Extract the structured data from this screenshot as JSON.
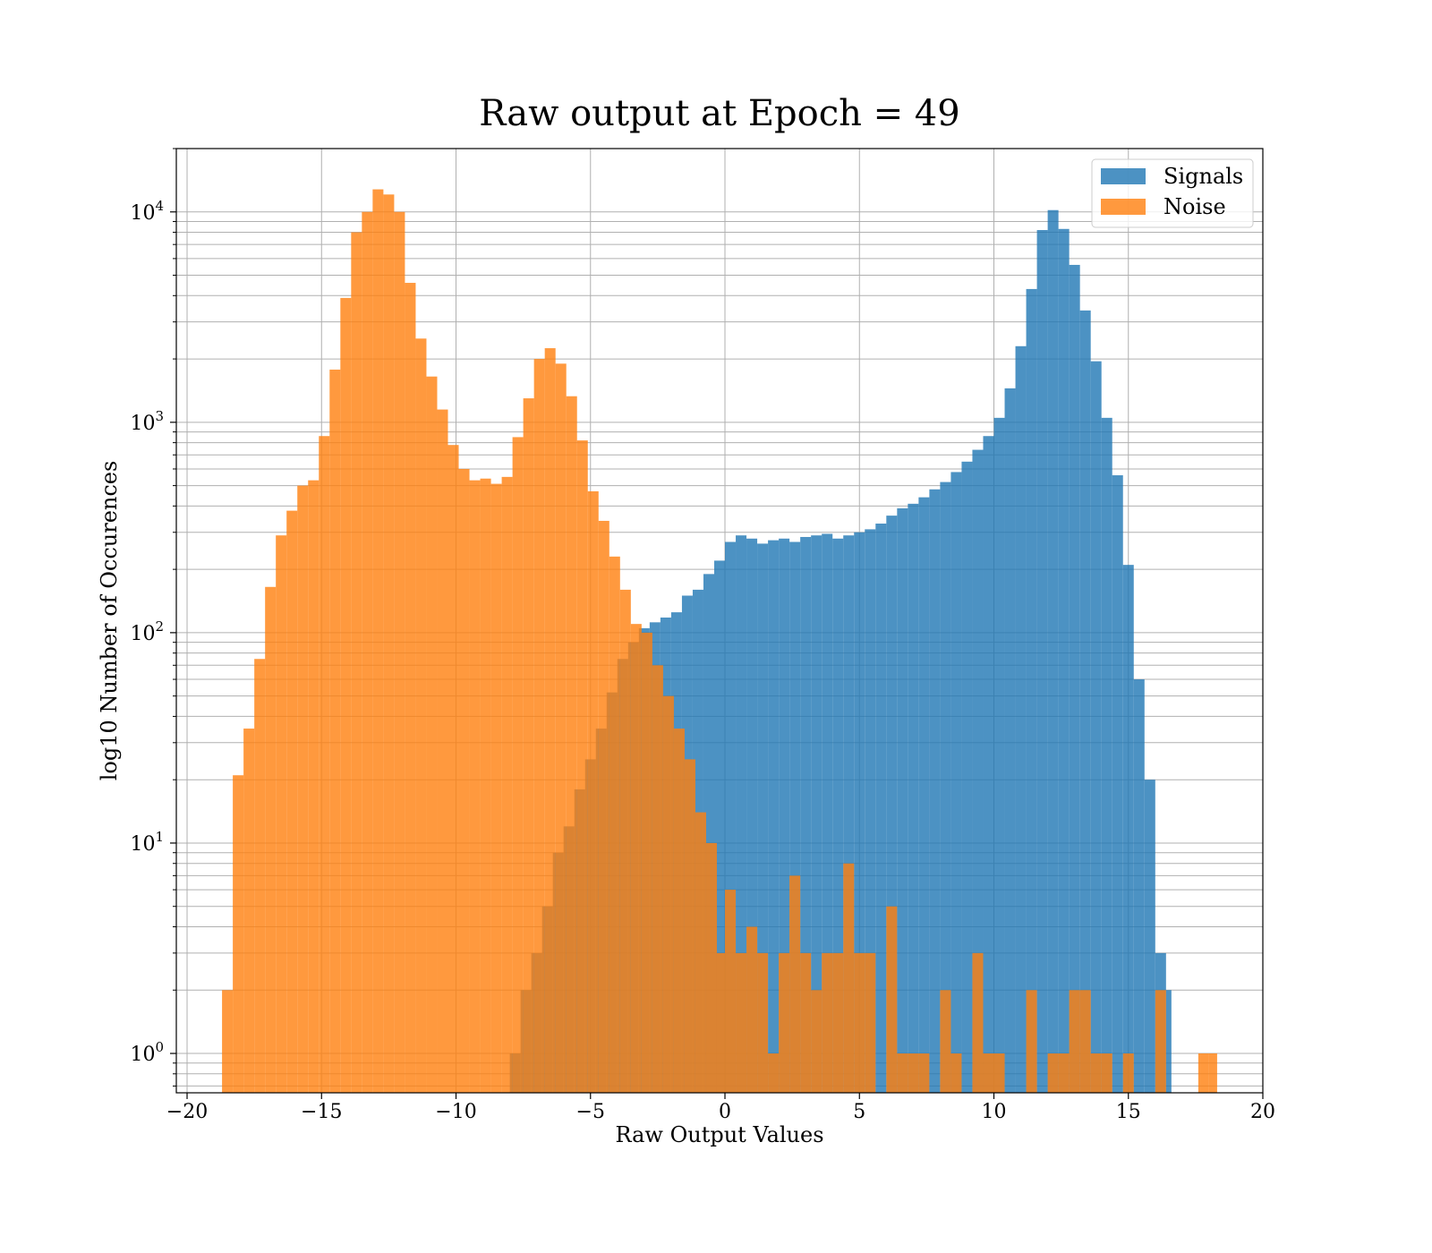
{
  "chart_data": {
    "type": "histogram",
    "title": "Raw output at Epoch = 49",
    "xlabel": "Raw Output Values",
    "ylabel": "log10 Number of Occurences",
    "xlim": [
      -20.4,
      20
    ],
    "ylim": [
      0.65,
      20000
    ],
    "yscale": "log",
    "xticks": [
      -20,
      -15,
      -10,
      -5,
      0,
      5,
      10,
      15,
      20
    ],
    "xtick_labels": [
      "−20",
      "−15",
      "−10",
      "−5",
      "0",
      "5",
      "10",
      "15",
      "20"
    ],
    "yticks": [
      1,
      10,
      100,
      1000,
      10000
    ],
    "ytick_labels": [
      {
        "base": "10",
        "exp": "0"
      },
      {
        "base": "10",
        "exp": "1"
      },
      {
        "base": "10",
        "exp": "2"
      },
      {
        "base": "10",
        "exp": "3"
      },
      {
        "base": "10",
        "exp": "4"
      }
    ],
    "grid": true,
    "legend_position": "upper right",
    "series": [
      {
        "name": "Signals",
        "color": "#1f77b4",
        "alpha": 0.8,
        "bins": [
          [
            -8.0,
            -7.6,
            1
          ],
          [
            -7.6,
            -7.2,
            2
          ],
          [
            -7.2,
            -6.8,
            3
          ],
          [
            -6.8,
            -6.4,
            5
          ],
          [
            -6.4,
            -6.0,
            9
          ],
          [
            -6.0,
            -5.6,
            12
          ],
          [
            -5.6,
            -5.2,
            18
          ],
          [
            -5.2,
            -4.8,
            25
          ],
          [
            -4.8,
            -4.4,
            35
          ],
          [
            -4.4,
            -4.0,
            52
          ],
          [
            -4.0,
            -3.6,
            75
          ],
          [
            -3.6,
            -3.2,
            90
          ],
          [
            -3.2,
            -2.8,
            105
          ],
          [
            -2.8,
            -2.4,
            112
          ],
          [
            -2.4,
            -2.0,
            118
          ],
          [
            -2.0,
            -1.6,
            125
          ],
          [
            -1.6,
            -1.2,
            150
          ],
          [
            -1.2,
            -0.8,
            160
          ],
          [
            -0.8,
            -0.4,
            190
          ],
          [
            -0.4,
            0.0,
            220
          ],
          [
            0.0,
            0.4,
            270
          ],
          [
            0.4,
            0.8,
            290
          ],
          [
            0.8,
            1.2,
            280
          ],
          [
            1.2,
            1.6,
            265
          ],
          [
            1.6,
            2.0,
            275
          ],
          [
            2.0,
            2.4,
            280
          ],
          [
            2.4,
            2.8,
            270
          ],
          [
            2.8,
            3.2,
            285
          ],
          [
            3.2,
            3.6,
            290
          ],
          [
            3.6,
            4.0,
            295
          ],
          [
            4.0,
            4.4,
            280
          ],
          [
            4.4,
            4.8,
            290
          ],
          [
            4.8,
            5.2,
            300
          ],
          [
            5.2,
            5.6,
            310
          ],
          [
            5.6,
            6.0,
            330
          ],
          [
            6.0,
            6.4,
            360
          ],
          [
            6.4,
            6.8,
            390
          ],
          [
            6.8,
            7.2,
            410
          ],
          [
            7.2,
            7.6,
            440
          ],
          [
            7.6,
            8.0,
            480
          ],
          [
            8.0,
            8.4,
            520
          ],
          [
            8.4,
            8.8,
            580
          ],
          [
            8.8,
            9.2,
            650
          ],
          [
            9.2,
            9.6,
            740
          ],
          [
            9.6,
            10.0,
            860
          ],
          [
            10.0,
            10.4,
            1050
          ],
          [
            10.4,
            10.8,
            1450
          ],
          [
            10.8,
            11.2,
            2300
          ],
          [
            11.2,
            11.6,
            4300
          ],
          [
            11.6,
            12.0,
            8200
          ],
          [
            12.0,
            12.4,
            10200
          ],
          [
            12.4,
            12.8,
            8300
          ],
          [
            12.8,
            13.2,
            5600
          ],
          [
            13.2,
            13.6,
            3400
          ],
          [
            13.6,
            14.0,
            1950
          ],
          [
            14.0,
            14.4,
            1050
          ],
          [
            14.4,
            14.8,
            560
          ],
          [
            14.8,
            15.2,
            210
          ],
          [
            15.2,
            15.6,
            60
          ],
          [
            15.6,
            16.0,
            20
          ],
          [
            16.0,
            16.4,
            3
          ],
          [
            16.4,
            16.6,
            2
          ]
        ]
      },
      {
        "name": "Noise",
        "color": "#ff7f0e",
        "alpha": 0.8,
        "bins": [
          [
            -18.7,
            -18.3,
            2
          ],
          [
            -18.3,
            -17.9,
            21
          ],
          [
            -17.9,
            -17.5,
            35
          ],
          [
            -17.5,
            -17.1,
            75
          ],
          [
            -17.1,
            -16.7,
            165
          ],
          [
            -16.7,
            -16.3,
            290
          ],
          [
            -16.3,
            -15.9,
            380
          ],
          [
            -15.9,
            -15.5,
            500
          ],
          [
            -15.5,
            -15.1,
            530
          ],
          [
            -15.1,
            -14.7,
            860
          ],
          [
            -14.7,
            -14.3,
            1780
          ],
          [
            -14.3,
            -13.9,
            3900
          ],
          [
            -13.9,
            -13.5,
            8000
          ],
          [
            -13.5,
            -13.1,
            10000
          ],
          [
            -13.1,
            -12.7,
            12800
          ],
          [
            -12.7,
            -12.3,
            12100
          ],
          [
            -12.3,
            -11.9,
            10000
          ],
          [
            -11.9,
            -11.5,
            4600
          ],
          [
            -11.5,
            -11.1,
            2500
          ],
          [
            -11.1,
            -10.7,
            1650
          ],
          [
            -10.7,
            -10.3,
            1150
          ],
          [
            -10.3,
            -9.9,
            780
          ],
          [
            -9.9,
            -9.5,
            600
          ],
          [
            -9.5,
            -9.1,
            530
          ],
          [
            -9.1,
            -8.7,
            540
          ],
          [
            -8.7,
            -8.3,
            510
          ],
          [
            -8.3,
            -7.9,
            550
          ],
          [
            -7.9,
            -7.5,
            850
          ],
          [
            -7.5,
            -7.1,
            1300
          ],
          [
            -7.1,
            -6.7,
            2000
          ],
          [
            -6.7,
            -6.3,
            2250
          ],
          [
            -6.3,
            -5.9,
            1900
          ],
          [
            -5.9,
            -5.5,
            1330
          ],
          [
            -5.5,
            -5.1,
            820
          ],
          [
            -5.1,
            -4.7,
            470
          ],
          [
            -4.7,
            -4.3,
            340
          ],
          [
            -4.3,
            -3.9,
            230
          ],
          [
            -3.9,
            -3.5,
            160
          ],
          [
            -3.5,
            -3.1,
            110
          ],
          [
            -3.1,
            -2.7,
            100
          ],
          [
            -2.7,
            -2.3,
            70
          ],
          [
            -2.3,
            -1.9,
            50
          ],
          [
            -1.9,
            -1.5,
            35
          ],
          [
            -1.5,
            -1.1,
            25
          ],
          [
            -1.1,
            -0.7,
            14
          ],
          [
            -0.7,
            -0.3,
            10
          ],
          [
            -0.3,
            0.0,
            3
          ],
          [
            0.0,
            0.4,
            6
          ],
          [
            0.4,
            0.8,
            3
          ],
          [
            0.8,
            1.2,
            4
          ],
          [
            1.2,
            1.6,
            3
          ],
          [
            1.6,
            2.0,
            1
          ],
          [
            2.0,
            2.4,
            3
          ],
          [
            2.4,
            2.8,
            7
          ],
          [
            2.8,
            3.2,
            3
          ],
          [
            3.2,
            3.6,
            2
          ],
          [
            3.6,
            4.0,
            3
          ],
          [
            4.0,
            4.4,
            3
          ],
          [
            4.4,
            4.8,
            8
          ],
          [
            4.8,
            5.2,
            3
          ],
          [
            5.2,
            5.6,
            3
          ],
          [
            5.6,
            6.0,
            0
          ],
          [
            6.0,
            6.4,
            5
          ],
          [
            6.4,
            6.8,
            1
          ],
          [
            6.8,
            7.2,
            1
          ],
          [
            7.2,
            7.6,
            1
          ],
          [
            7.6,
            8.0,
            0
          ],
          [
            8.0,
            8.4,
            2
          ],
          [
            8.4,
            8.8,
            1
          ],
          [
            8.8,
            9.2,
            0
          ],
          [
            9.2,
            9.6,
            3
          ],
          [
            9.6,
            10.0,
            1
          ],
          [
            10.0,
            10.4,
            1
          ],
          [
            10.4,
            10.8,
            0
          ],
          [
            10.8,
            11.2,
            0
          ],
          [
            11.2,
            11.6,
            2
          ],
          [
            11.6,
            12.0,
            0
          ],
          [
            12.0,
            12.4,
            1
          ],
          [
            12.4,
            12.8,
            1
          ],
          [
            12.8,
            13.2,
            2
          ],
          [
            13.2,
            13.6,
            2
          ],
          [
            13.6,
            14.0,
            1
          ],
          [
            14.0,
            14.4,
            1
          ],
          [
            14.4,
            14.8,
            0
          ],
          [
            14.8,
            15.2,
            1
          ],
          [
            15.2,
            15.6,
            0
          ],
          [
            15.6,
            16.0,
            0
          ],
          [
            16.0,
            16.4,
            2
          ],
          [
            16.4,
            16.8,
            0
          ],
          [
            16.8,
            17.2,
            0
          ],
          [
            17.2,
            17.6,
            0
          ],
          [
            17.6,
            18.0,
            1
          ],
          [
            18.0,
            18.3,
            1
          ]
        ]
      }
    ]
  }
}
